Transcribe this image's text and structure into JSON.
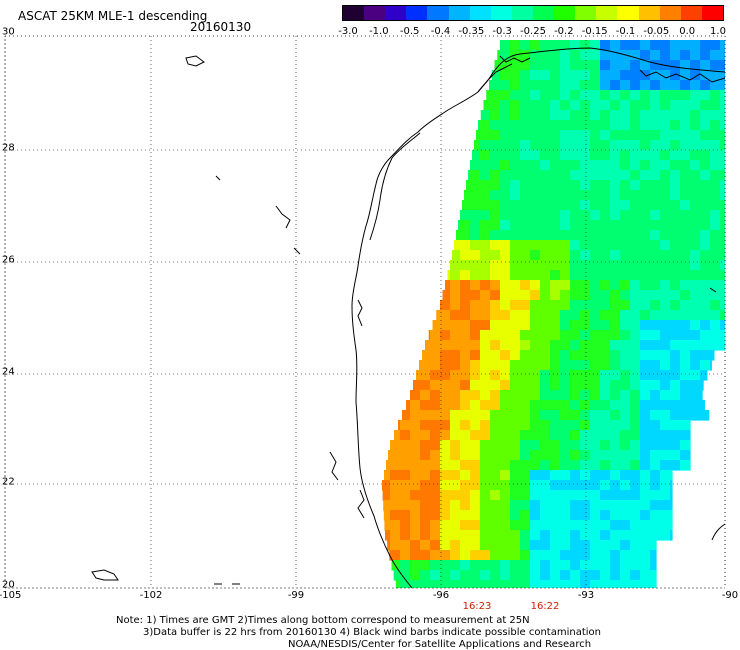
{
  "header": {
    "title": "ASCAT 25KM MLE-1 descending",
    "date": "20160130"
  },
  "colorbar": {
    "colors": [
      "#200030",
      "#4a0080",
      "#3000c8",
      "#0030ff",
      "#0078ff",
      "#00b4ff",
      "#00e0ff",
      "#00ffe0",
      "#00ffa0",
      "#00ff50",
      "#20ff00",
      "#80ff00",
      "#c8ff00",
      "#ffff00",
      "#ffc000",
      "#ff8000",
      "#ff4000",
      "#ff0000"
    ],
    "tick_labels": [
      "-3.0",
      "-1.0",
      "-0.5",
      "-0.4",
      "-0.35",
      "-0.3",
      "-0.25",
      "-0.2",
      "-0.15",
      "-0.1",
      "-0.05",
      "0.0",
      "1.0"
    ]
  },
  "axes": {
    "lat_labels": [
      "30",
      "28",
      "26",
      "24",
      "22",
      "20"
    ],
    "lon_labels": [
      "-105",
      "-102",
      "-99",
      "-96",
      "-93",
      "-90"
    ]
  },
  "times": [
    "16:23",
    "16:22"
  ],
  "notes": [
    "Note: 1) Times are GMT 2)Times along bottom correspond to measurement at 25N",
    "3)Data buffer is 22 hrs from 20160130 4) Black wind barbs indicate possible contamination",
    "NOAA/NESDIS/Center for Satellite Applications and Research"
  ]
}
